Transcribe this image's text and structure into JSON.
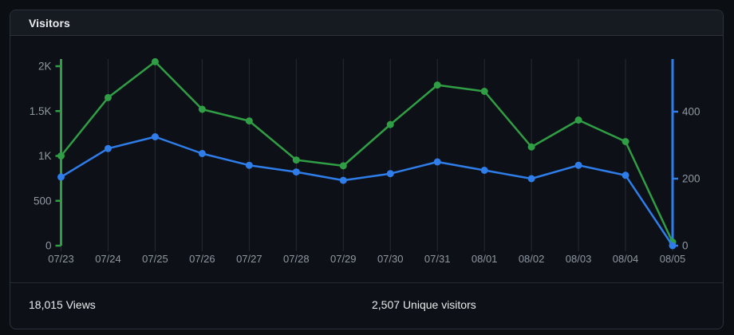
{
  "card": {
    "title": "Visitors"
  },
  "footer": {
    "views": {
      "value": "18,015",
      "label": "Views"
    },
    "unique": {
      "value": "2,507",
      "label": "Unique visitors"
    }
  },
  "colors": {
    "views_series": "#2f9e44",
    "unique_series": "#2e7de9"
  },
  "chart_data": {
    "type": "line",
    "title": "Visitors",
    "x": [
      "07/23",
      "07/24",
      "07/25",
      "07/26",
      "07/27",
      "07/28",
      "07/29",
      "07/30",
      "07/31",
      "08/01",
      "08/02",
      "08/03",
      "08/04",
      "08/05"
    ],
    "series": [
      {
        "name": "Views",
        "yaxis": "left",
        "color": "#2f9e44",
        "values": [
          1000,
          1650,
          2050,
          1520,
          1390,
          955,
          890,
          1350,
          1790,
          1720,
          1100,
          1400,
          1160,
          40
        ]
      },
      {
        "name": "Unique visitors",
        "yaxis": "right",
        "color": "#2e7de9",
        "values": [
          205,
          290,
          325,
          275,
          240,
          220,
          195,
          215,
          250,
          225,
          200,
          240,
          210,
          0
        ]
      }
    ],
    "left_axis": {
      "ylim": [
        0,
        2000
      ],
      "color": "#2f9e44",
      "ticks": [
        {
          "label": "2K",
          "value": 2000
        },
        {
          "label": "1.5K",
          "value": 1500
        },
        {
          "label": "1K",
          "value": 1000
        },
        {
          "label": "500",
          "value": 500
        },
        {
          "label": "0",
          "value": 0
        }
      ]
    },
    "right_axis": {
      "ylim": [
        0,
        555
      ],
      "color": "#2e7de9",
      "ticks": [
        {
          "label": "400",
          "value": 400
        },
        {
          "label": "200",
          "value": 200
        },
        {
          "label": "0",
          "value": 0
        }
      ]
    },
    "grid": "vertical-only",
    "grid_color": "#262b33",
    "label_color": "#8f98a2",
    "legend": "none"
  }
}
